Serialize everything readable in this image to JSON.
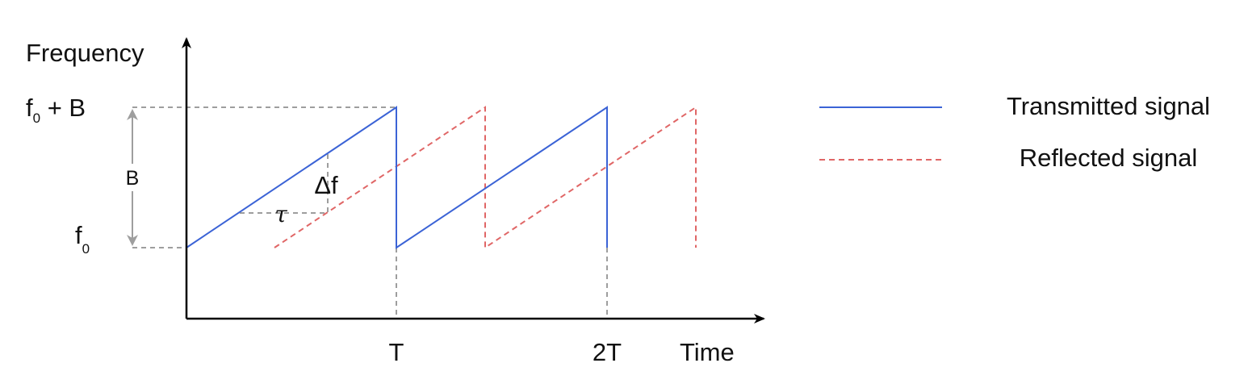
{
  "diagram": {
    "axes": {
      "y_label": "Frequency",
      "x_label": "Time",
      "x_ticks": [
        "T",
        "2T"
      ]
    },
    "levels": {
      "top_base": "f",
      "top_sub": "0",
      "top_suffix": " + B",
      "bottom_base": "f",
      "bottom_sub": "0",
      "bandwidth": "B"
    },
    "annotations": {
      "delay": "τ",
      "freq_diff": "Δf"
    },
    "legend": {
      "transmitted": "Transmitted signal",
      "reflected": "Reflected signal"
    },
    "colors": {
      "transmitted": "#3b63d6",
      "reflected": "#e06666",
      "guide": "#9e9e9e",
      "axis": "#000000"
    }
  }
}
